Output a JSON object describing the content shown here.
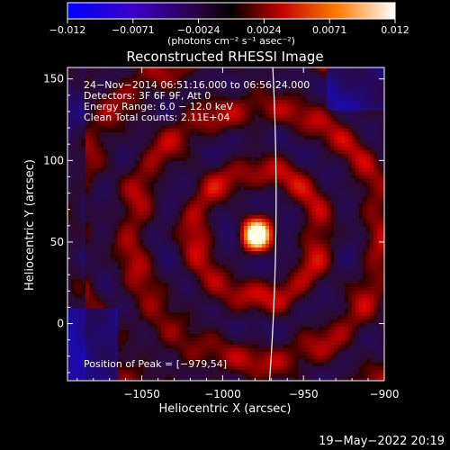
{
  "colorbar": {
    "ticks": [
      "−0.012",
      "−0.0071",
      "−0.0024",
      "0.0024",
      "0.0071",
      "0.012"
    ],
    "unit_label": "(photons cm⁻² s⁻¹ asec⁻²)"
  },
  "annotations": {
    "time_range": "24−Nov−2014 06:51:16.000 to 06:56:24.000",
    "detectors": "Detectors: 3F 6F 9F, Att 0",
    "energy": "Energy Range: 6.0 − 12.0 keV",
    "clean": "Clean     Total counts: 2.11E+04",
    "peak": "Position of Peak = [−979,54]"
  },
  "footer": {
    "timestamp": "19−May−2022 20:19"
  },
  "colors": {
    "limb_line": "#ffffff",
    "text": "#ffffff",
    "background": "#000000"
  },
  "chart_data": {
    "type": "heatmap",
    "title": "Reconstructed RHESSI Image",
    "xlabel": "Heliocentric X (arcsec)",
    "ylabel": "Heliocentric Y (arcsec)",
    "xlim": [
      -1096,
      -900
    ],
    "ylim": [
      -35,
      157
    ],
    "xticks": [
      -1050,
      -1000,
      -950,
      -900
    ],
    "xtick_labels": [
      "−1050",
      "−1000",
      "−950",
      "−900"
    ],
    "yticks": [
      0,
      50,
      100,
      150
    ],
    "ytick_labels": [
      "0",
      "50",
      "100",
      "150"
    ],
    "color_range": [
      -0.012,
      0.012
    ],
    "peak": {
      "x": -979,
      "y": 54,
      "value": 0.012
    },
    "limb": {
      "x_at_ymin": -971,
      "x_at_ymax": -969,
      "x_max_mid": -967
    }
  }
}
